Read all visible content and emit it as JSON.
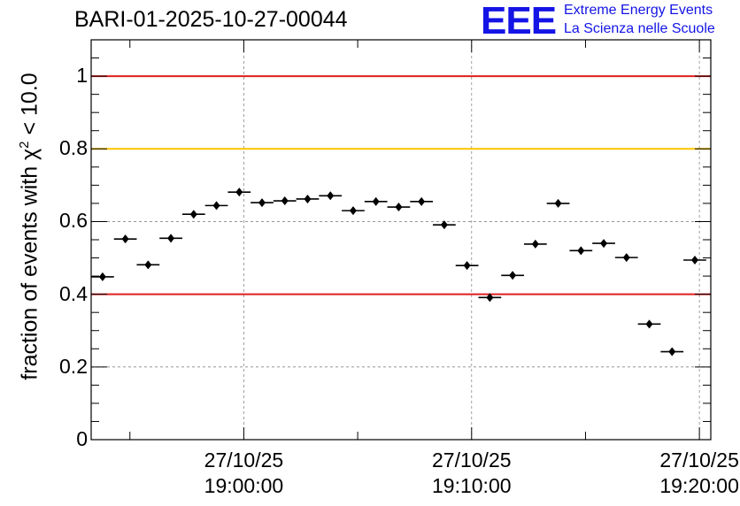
{
  "header": {
    "title": "BARI-01-2025-10-27-00044",
    "logo_text": "EEE",
    "logo_line1": "Extreme Energy Events",
    "logo_line2": "La Scienza nelle Scuole"
  },
  "colors": {
    "logo": "#1414e6",
    "red_line": "#e01e1e",
    "yellow_line": "#ffc300",
    "grid": "#888888"
  },
  "chart_data": {
    "type": "scatter",
    "title": "BARI-01-2025-10-27-00044",
    "ylabel": {
      "text": "fraction of events with χ",
      "sup": "2",
      "suffix": " < 10.0"
    },
    "ylim": [
      0,
      1.1
    ],
    "xlim_minutes": [
      -6.7,
      20.5
    ],
    "grid": true,
    "y_ticks": [
      {
        "value": 0,
        "label": "0"
      },
      {
        "value": 0.2,
        "label": "0.2"
      },
      {
        "value": 0.4,
        "label": "0.4"
      },
      {
        "value": 0.6,
        "label": "0.6"
      },
      {
        "value": 0.8,
        "label": "0.8"
      },
      {
        "value": 1,
        "label": "1"
      }
    ],
    "x_ticks": [
      {
        "minutes": 0,
        "date": "27/10/25",
        "time": "19:00:00"
      },
      {
        "minutes": 10,
        "date": "27/10/25",
        "time": "19:10:00"
      },
      {
        "minutes": 20,
        "date": "27/10/25",
        "time": "19:20:00"
      }
    ],
    "reference_lines": [
      {
        "y": 1.0,
        "color": "#e01e1e"
      },
      {
        "y": 0.8,
        "color": "#ffc300"
      },
      {
        "y": 0.4,
        "color": "#e01e1e"
      }
    ],
    "bin_width_minutes": 1.0,
    "points": [
      {
        "x": -6.2,
        "y": 0.448
      },
      {
        "x": -5.2,
        "y": 0.552
      },
      {
        "x": -4.2,
        "y": 0.481
      },
      {
        "x": -3.2,
        "y": 0.554
      },
      {
        "x": -2.2,
        "y": 0.62
      },
      {
        "x": -1.2,
        "y": 0.644
      },
      {
        "x": -0.2,
        "y": 0.681
      },
      {
        "x": 0.8,
        "y": 0.652
      },
      {
        "x": 1.8,
        "y": 0.657
      },
      {
        "x": 2.8,
        "y": 0.662
      },
      {
        "x": 3.8,
        "y": 0.671
      },
      {
        "x": 4.8,
        "y": 0.63
      },
      {
        "x": 5.8,
        "y": 0.655
      },
      {
        "x": 6.8,
        "y": 0.64
      },
      {
        "x": 7.8,
        "y": 0.655
      },
      {
        "x": 8.8,
        "y": 0.591
      },
      {
        "x": 9.8,
        "y": 0.479
      },
      {
        "x": 10.8,
        "y": 0.391
      },
      {
        "x": 11.8,
        "y": 0.452
      },
      {
        "x": 12.8,
        "y": 0.538
      },
      {
        "x": 13.8,
        "y": 0.65
      },
      {
        "x": 14.8,
        "y": 0.52
      },
      {
        "x": 15.8,
        "y": 0.54
      },
      {
        "x": 16.8,
        "y": 0.501
      },
      {
        "x": 17.8,
        "y": 0.318
      },
      {
        "x": 18.8,
        "y": 0.242
      },
      {
        "x": 19.8,
        "y": 0.494
      }
    ]
  }
}
